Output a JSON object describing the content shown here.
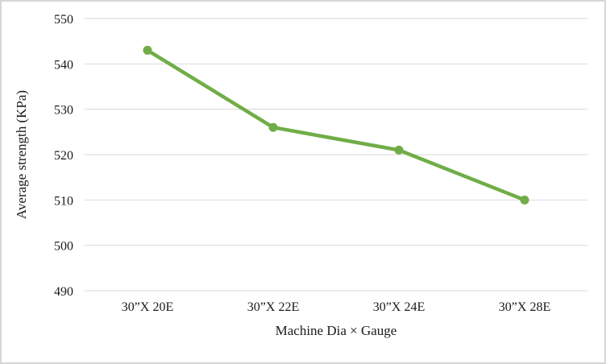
{
  "chart": {
    "xlabel": "Machine Dia × Gauge",
    "ylabel": "Average strength (KPa)"
  },
  "chart_data": {
    "type": "line",
    "title": "",
    "categories": [
      "30”X 20E",
      "30”X 22E",
      "30”X 24E",
      "30”X 28E"
    ],
    "values": [
      543,
      526,
      521,
      510
    ],
    "xlabel": "Machine Dia × Gauge",
    "ylabel": "Average strength (KPa)",
    "ylim": [
      490,
      550
    ],
    "ytick_step": 10,
    "yticks": [
      490,
      500,
      510,
      520,
      530,
      540,
      550
    ],
    "grid": "horizontal",
    "legend_position": "none",
    "line_color": "#70AD47",
    "marker": "circle",
    "gridline_color": "#d9d9d9",
    "text_color": "#1a1a1a",
    "border_color": "#d6d6d6"
  }
}
